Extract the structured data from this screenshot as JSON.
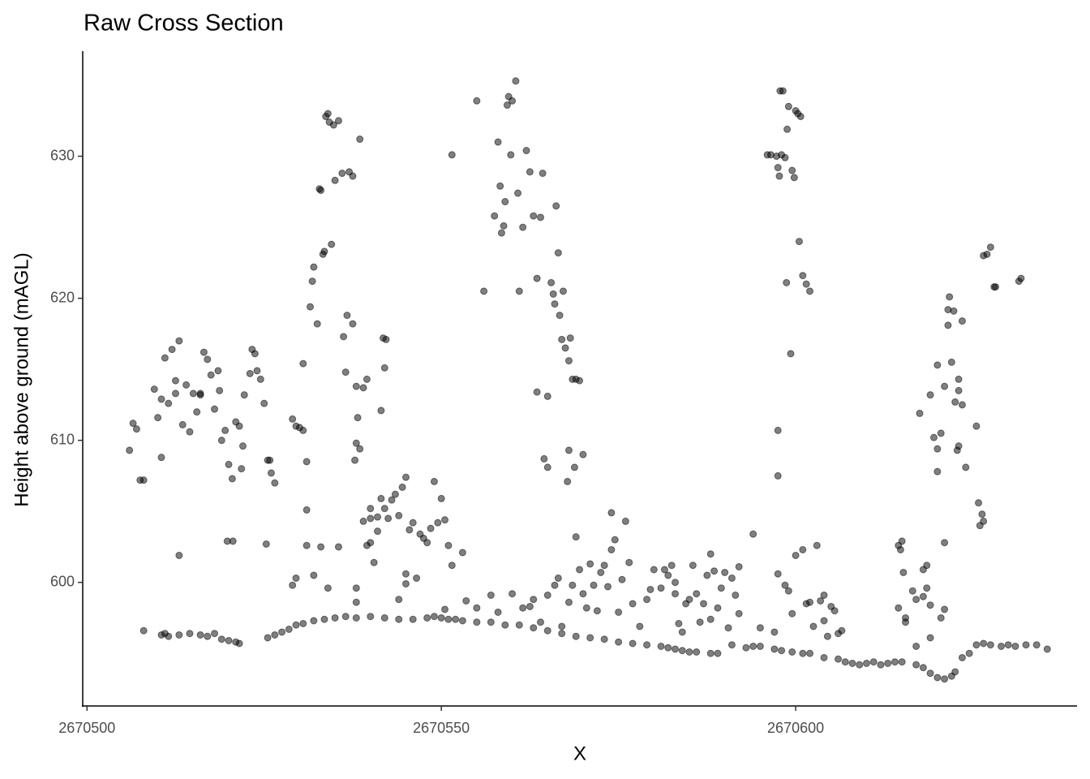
{
  "chart_data": {
    "type": "scatter",
    "title": "Raw Cross Section",
    "x_label": "X",
    "y_label": "Height above ground (mAGL)",
    "color": "#000000",
    "opacity": 0.5,
    "xlim": [
      2670499.4,
      2670639.7
    ],
    "ylim": [
      591.3,
      637.4
    ],
    "xticks": [
      2670500,
      2670550,
      2670600
    ],
    "yticks": [
      600,
      610,
      620,
      630
    ],
    "x": [
      2670508,
      2670510.5,
      2670511,
      2670511.5,
      2670513,
      2670514.5,
      2670516,
      2670517,
      2670518,
      2670519,
      2670520,
      2670521,
      2670521.5,
      2670525.5,
      2670526.5,
      2670527.5,
      2670528.5,
      2670529.5,
      2670530.5,
      2670532,
      2670533.5,
      2670535,
      2670536.5,
      2670538,
      2670540,
      2670542,
      2670544,
      2670546,
      2670548,
      2670549,
      2670550,
      2670551,
      2670552,
      2670553,
      2670555,
      2670557,
      2670559,
      2670561,
      2670563,
      2670565,
      2670567,
      2670569,
      2670571,
      2670573,
      2670575,
      2670577,
      2670579,
      2670581,
      2670582,
      2670583,
      2670584,
      2670585,
      2670586,
      2670588,
      2670589,
      2670591,
      2670593,
      2670594,
      2670595,
      2670597,
      2670598,
      2670599.5,
      2670601,
      2670602,
      2670604,
      2670606,
      2670607,
      2670608,
      2670609,
      2670610,
      2670611,
      2670612,
      2670613,
      2670614,
      2670615,
      2670617,
      2670618,
      2670619,
      2670620,
      2670621,
      2670622,
      2670622.5,
      2670623.5,
      2670624.5,
      2670625.5,
      2670626.5,
      2670627.5,
      2670629,
      2670630,
      2670631,
      2670632.5,
      2670634,
      2670635.5,
      2670506,
      2670506.5,
      2670507,
      2670507.5,
      2670508,
      2670509.5,
      2670510,
      2670510.5,
      2670511,
      2670511.5,
      2670512,
      2670512.5,
      2670513,
      2670513.5,
      2670514,
      2670514.5,
      2670515,
      2670515.5,
      2670516,
      2670510.5,
      2670512.5,
      2670513,
      2670516,
      2670516.5,
      2670517,
      2670517.5,
      2670518,
      2670518.5,
      2670518.7,
      2670519,
      2670519.5,
      2670519.8,
      2670520,
      2670520.5,
      2670521,
      2670521.5,
      2670521.8,
      2670522,
      2670522.2,
      2670520.6,
      2670523,
      2670523.3,
      2670523.7,
      2670524,
      2670524.5,
      2670525,
      2670525.5,
      2670525.8,
      2670526,
      2670526.5,
      2670525.3,
      2670529,
      2670529.5,
      2670530,
      2670530.5,
      2670531,
      2670530.5,
      2670531.5,
      2670531.8,
      2670532,
      2670532.5,
      2670532.8,
      2670533,
      2670533.3,
      2670533.5,
      2670533.7,
      2670534,
      2670534.2,
      2670534.5,
      2670534.8,
      2670535,
      2670535.5,
      2670536,
      2670536.2,
      2670536.5,
      2670536.7,
      2670537,
      2670537.5,
      2670537.5,
      2670538,
      2670538.2,
      2670538.5,
      2670537.8,
      2670538,
      2670538.5,
      2670539,
      2670539.5,
      2670540,
      2670540.5,
      2670541,
      2670541.5,
      2670542,
      2670541.8,
      2670542.2,
      2670539.5,
      2670529,
      2670529.5,
      2670531,
      2670531,
      2670532,
      2670533,
      2670534,
      2670535.5,
      2670538,
      2670538,
      2670539,
      2670540,
      2670540,
      2670541,
      2670541.5,
      2670542,
      2670542.5,
      2670543,
      2670543.5,
      2670544,
      2670544.5,
      2670545,
      2670545,
      2670545.5,
      2670546,
      2670546.5,
      2670547,
      2670547.5,
      2670548,
      2670548.5,
      2670549,
      2670549.5,
      2670550,
      2670550.5,
      2670551,
      2670551.5,
      2670544,
      2670550.5,
      2670545,
      2670551.5,
      2670555,
      2670556,
      2670557.5,
      2670558,
      2670558.3,
      2670558.5,
      2670558.8,
      2670559,
      2670559.3,
      2670559.5,
      2670559.8,
      2670560,
      2670560.5,
      2670560.8,
      2670561,
      2670561.5,
      2670562,
      2670562.5,
      2670563,
      2670563.5,
      2670563.5,
      2670564,
      2670564.3,
      2670564.5,
      2670565,
      2670565,
      2670565.5,
      2670565.8,
      2670566,
      2670566.2,
      2670566.5,
      2670566.7,
      2670567,
      2670567.2,
      2670567.5,
      2670567.8,
      2670568,
      2670568,
      2670568.2,
      2670568.5,
      2670568.8,
      2670569,
      2670569.5,
      2670570,
      2670553,
      2670553.5,
      2670555,
      2670557,
      2670558,
      2670560,
      2670561.5,
      2670562.5,
      2670563,
      2670564,
      2670565,
      2670566,
      2670566.5,
      2670567,
      2670568,
      2670568.5,
      2670569,
      2670569.5,
      2670570,
      2670570.5,
      2670571,
      2670571.5,
      2670572,
      2670572.5,
      2670573,
      2670573.5,
      2670574,
      2670574,
      2670574.5,
      2670575,
      2670575.5,
      2670576,
      2670576.5,
      2670577,
      2670578,
      2670579,
      2670579.5,
      2670580,
      2670581,
      2670581.5,
      2670582,
      2670582.5,
      2670583,
      2670583,
      2670583.5,
      2670584,
      2670584.5,
      2670585,
      2670585.5,
      2670586,
      2670586.5,
      2670587,
      2670587.5,
      2670588,
      2670588,
      2670588.5,
      2670589,
      2670589.5,
      2670590,
      2670590.5,
      2670591,
      2670591.5,
      2670592,
      2670592,
      2670594,
      2670595,
      2670597,
      2670597.5,
      2670598.5,
      2670599,
      2670599.5,
      2670600,
      2670601,
      2670601.5,
      2670602,
      2670602.5,
      2670603,
      2670604,
      2670604,
      2670604.5,
      2670603.5,
      2670605,
      2670605.5,
      2670606,
      2670606.5,
      2670596,
      2670596.5,
      2670597.3,
      2670597.5,
      2670597.7,
      2670597.8,
      2670598,
      2670598.2,
      2670598.5,
      2670598.7,
      2670598.8,
      2670599,
      2670599.3,
      2670599.5,
      2670599.8,
      2670600,
      2670600.3,
      2670600.5,
      2670600.7,
      2670601,
      2670601.5,
      2670602,
      2670597.5,
      2670597.5,
      2670614.5,
      2670614.8,
      2670615,
      2670615.2,
      2670615.5,
      2670614.5,
      2670615.5,
      2670616.5,
      2670617,
      2670618,
      2670618.5,
      2670618,
      2670619,
      2670619,
      2670618.5,
      2670617,
      2670621,
      2670620.5,
      2670617.5,
      2670619,
      2670619.5,
      2670620,
      2670620,
      2670620,
      2670620.5,
      2670621,
      2670621,
      2670621.5,
      2670621.5,
      2670621.7,
      2670622,
      2670622.3,
      2670622.5,
      2670622.8,
      2670623,
      2670623,
      2670623,
      2670623.5,
      2670623.5,
      2670624,
      2670625.5,
      2670625.8,
      2670626,
      2670626.3,
      2670626.5,
      2670626.5,
      2670627,
      2670627.5,
      2670628,
      2670628.2,
      2670631.5,
      2670631.8
    ],
    "values": [
      596.6,
      596.3,
      596.4,
      596.2,
      596.3,
      596.4,
      596.3,
      596.2,
      596.4,
      596,
      595.9,
      595.8,
      595.7,
      596.1,
      596.3,
      596.5,
      596.7,
      597,
      597.1,
      597.3,
      597.4,
      597.5,
      597.6,
      597.5,
      597.6,
      597.5,
      597.4,
      597.4,
      597.5,
      597.6,
      597.5,
      597.4,
      597.4,
      597.3,
      597.2,
      597.2,
      597,
      597,
      596.8,
      596.6,
      596.4,
      596.2,
      596.1,
      596,
      595.8,
      595.7,
      595.6,
      595.5,
      595.4,
      595.3,
      595.2,
      595.1,
      595.1,
      595,
      595,
      595.6,
      595.4,
      595.5,
      595.5,
      595.3,
      595.2,
      595.1,
      595,
      595,
      594.7,
      594.6,
      594.4,
      594.3,
      594.2,
      594.3,
      594.4,
      594.2,
      594.3,
      594.4,
      594.4,
      594.2,
      594,
      593.6,
      593.3,
      593.2,
      593.4,
      593.7,
      594.7,
      595,
      595.6,
      595.7,
      595.6,
      595.5,
      595.6,
      595.5,
      595.6,
      595.6,
      595.3,
      609.3,
      611.2,
      610.8,
      607.2,
      607.2,
      613.6,
      611.6,
      608.8,
      615.8,
      612.6,
      616.4,
      613.3,
      617,
      611.1,
      613.9,
      610.6,
      613.3,
      612,
      613.3,
      612.9,
      614.2,
      601.9,
      613.2,
      616.2,
      615.7,
      614.6,
      612.2,
      614.9,
      613.5,
      610,
      610.7,
      602.9,
      608.3,
      607.3,
      611.3,
      611,
      608,
      609.6,
      613.2,
      602.9,
      614.7,
      616.4,
      616.1,
      614.9,
      614.3,
      612.6,
      608.6,
      608.6,
      607.7,
      607,
      602.7,
      611.5,
      611,
      610.9,
      610.7,
      608.5,
      615.4,
      619.4,
      621.2,
      622.2,
      618.2,
      627.7,
      627.6,
      623.1,
      623.3,
      632.8,
      633,
      632.4,
      623.8,
      632.2,
      628.3,
      632.5,
      628.8,
      617.3,
      614.8,
      618.8,
      628.9,
      618.2,
      628.6,
      613.8,
      611.6,
      631.2,
      608.6,
      609.8,
      609.4,
      613.7,
      602.6,
      602.8,
      601.4,
      604.6,
      612.1,
      615.1,
      617.2,
      617.1,
      614.3,
      599.8,
      600.3,
      605.1,
      602.6,
      600.5,
      602.5,
      599.6,
      602.5,
      599.6,
      598.6,
      604.3,
      605.2,
      604.5,
      603.6,
      605.9,
      605.2,
      604.5,
      605.8,
      606.2,
      604.7,
      606.7,
      607.4,
      600.6,
      603.7,
      604.2,
      600.3,
      603.4,
      603.1,
      602.8,
      603.8,
      607.1,
      604.2,
      605.9,
      604.4,
      602.6,
      601.2,
      598.8,
      598.1,
      599.9,
      630.1,
      633.9,
      620.5,
      625.8,
      631,
      627.9,
      624.6,
      625.1,
      626.8,
      633.6,
      634.2,
      630.1,
      633.9,
      635.3,
      627.4,
      620.5,
      625,
      630.4,
      628.9,
      625.8,
      613.4,
      621.4,
      625.7,
      628.8,
      608.7,
      608.1,
      613.1,
      621.1,
      620.3,
      619.6,
      626.5,
      623.2,
      618.8,
      617.1,
      620.5,
      616.5,
      607.1,
      609.3,
      615.6,
      617.2,
      614.3,
      608.1,
      614.3,
      614.2,
      609,
      602.1,
      598.7,
      598.2,
      599.1,
      597.9,
      599.2,
      598.2,
      598.3,
      598.8,
      597.2,
      599.1,
      599.8,
      600.3,
      596.9,
      598.6,
      599.8,
      603.2,
      600.9,
      599.2,
      598.2,
      601.3,
      599.8,
      598,
      600.7,
      601.2,
      599.7,
      602.3,
      604.9,
      603,
      597.9,
      600.2,
      604.3,
      601.4,
      598.5,
      596.9,
      598.8,
      599.5,
      600.9,
      599.6,
      600.9,
      600.5,
      601.2,
      600,
      599.2,
      597.1,
      596.5,
      598.5,
      598.8,
      601.2,
      599.2,
      597.2,
      598.5,
      600.5,
      597.4,
      602,
      600.8,
      598.2,
      599.6,
      600.7,
      596.8,
      600.3,
      599.1,
      601.1,
      597.8,
      603.4,
      596.8,
      596.5,
      600.6,
      599.8,
      599.4,
      597.8,
      601.9,
      602.3,
      598.5,
      598.6,
      596.9,
      602.6,
      599.1,
      597.3,
      596.2,
      598.7,
      598.3,
      598,
      596.4,
      596.6,
      630.1,
      630.1,
      630,
      629.2,
      628.6,
      634.6,
      630.1,
      634.6,
      629.9,
      621.1,
      631.9,
      633.5,
      616.1,
      629,
      628.5,
      633.2,
      633,
      624,
      632.8,
      621.6,
      621,
      620.5,
      610.7,
      607.5,
      602.6,
      602.3,
      602.9,
      600.7,
      597.5,
      598.2,
      597.2,
      599.4,
      598.8,
      600.9,
      601.2,
      599,
      598.4,
      596.1,
      599.6,
      595.5,
      598.1,
      597.5,
      611.9,
      613.2,
      610.2,
      615.3,
      609.4,
      607.8,
      610.5,
      613.8,
      602.8,
      618.1,
      619.2,
      620.1,
      615.5,
      619.1,
      612.7,
      609.3,
      614.3,
      613.5,
      609.6,
      618.4,
      612.5,
      608.1,
      611,
      605.6,
      604,
      604.8,
      604.3,
      623,
      623.1,
      623.6,
      620.8,
      620.8,
      621.2,
      621.4
    ]
  }
}
